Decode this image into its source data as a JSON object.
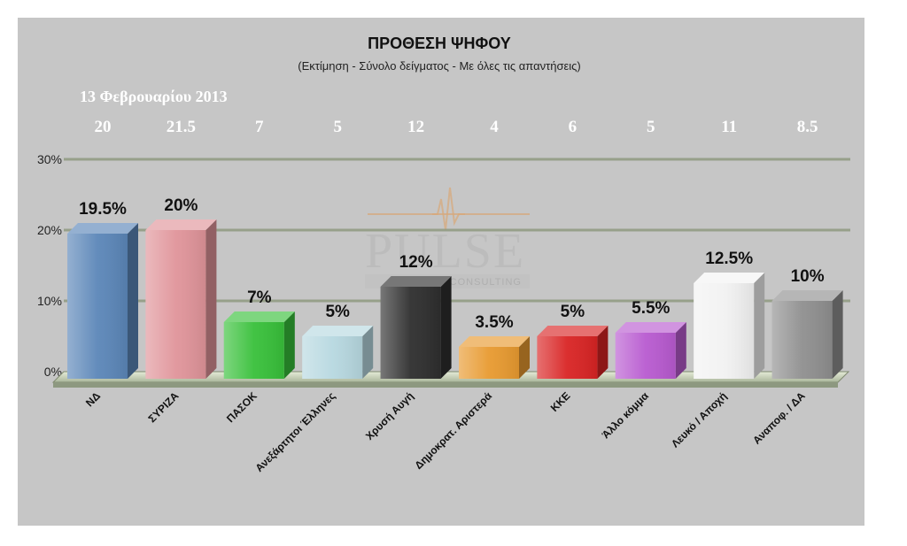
{
  "chart_data": {
    "type": "bar",
    "title": "ΠΡΟΘΕΣΗ ΨΗΦΟΥ",
    "subtitle": "(Εκτίμηση - Σύνολο δείγματος - Με όλες τις απαντήσεις)",
    "ylim": [
      0,
      30
    ],
    "yticks": [
      "0%",
      "10%",
      "20%",
      "30%"
    ],
    "ytick_values": [
      0,
      10,
      20,
      30
    ],
    "grid": true,
    "categories": [
      "ΝΔ",
      "ΣΥΡΙΖΑ",
      "ΠΑΣΟΚ",
      "Ανεξάρτητοι Έλληνες",
      "Χρυσή Αυγή",
      "Δημοκρατ. Αριστερά",
      "ΚΚΕ",
      "Άλλο κόμμα",
      "Λευκό / Αποχή",
      "Αναποφ. / ΔΑ"
    ],
    "values": [
      19.5,
      20,
      7,
      5,
      12,
      3.5,
      5,
      5.5,
      12.5,
      10
    ],
    "value_labels": [
      "19.5%",
      "20%",
      "7%",
      "5%",
      "12%",
      "3.5%",
      "5%",
      "5.5%",
      "12.5%",
      "10%"
    ],
    "colors": [
      "#5b86b8",
      "#e0949a",
      "#38c03a",
      "#b7d8e0",
      "#2e2e2e",
      "#e89a30",
      "#d92424",
      "#b85ad0",
      "#f2f2f2",
      "#8f8f8f"
    ],
    "previous_poll": {
      "date": "13 Φεβρουαρίου 2013",
      "values": [
        "20",
        "21.5",
        "7",
        "5",
        "12",
        "4",
        "6",
        "5",
        "11",
        "8.5"
      ]
    },
    "watermark": {
      "name": "PULSE",
      "tagline": "BUSINESS CONSULTING"
    }
  }
}
